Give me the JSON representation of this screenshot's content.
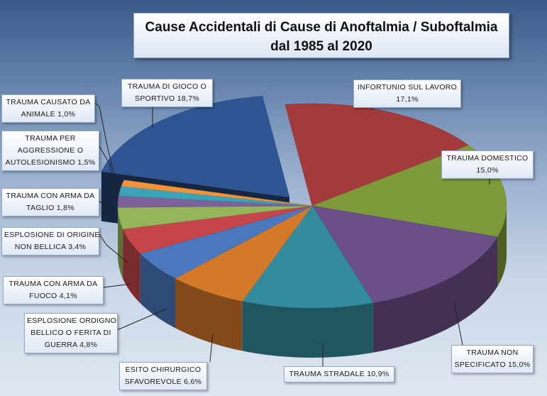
{
  "title": {
    "line1": "Cause Accidentali di Cause di Anoftalmia / Suboftalmia",
    "line2": "dal 1985 al 2020"
  },
  "chart_data": {
    "type": "pie",
    "style": "3d-exploded",
    "title": "Cause Accidentali di Cause di Anoftalmia / Suboftalmia dal 1985 al 2020",
    "slices": [
      {
        "label": "INFORTUNIO SUL LAVORO",
        "value": 17.1,
        "text": "17,1%",
        "color": "#a33b3d"
      },
      {
        "label": "TRAUMA DOMESTICO",
        "value": 15.0,
        "text": "15,0%",
        "color": "#7f9a3a"
      },
      {
        "label": "TRAUMA NON SPECIFICATO",
        "value": 15.0,
        "text": "15,0%",
        "color": "#6a4f88"
      },
      {
        "label": "TRAUMA STRADALE",
        "value": 10.9,
        "text": "10,9%",
        "color": "#338b9e"
      },
      {
        "label": "ESITO CHIRURGICO SFAVOREVOLE",
        "value": 6.6,
        "text": "6,6%",
        "color": "#d4782a"
      },
      {
        "label": "ESPLOSIONE ORDIGNO BELLICO O FERITA DI GUERRA",
        "value": 4.8,
        "text": "4,8%",
        "color": "#4a78bf"
      },
      {
        "label": "TRAUMA CON ARMA DA FUOCO",
        "value": 4.1,
        "text": "4,1%",
        "color": "#c4464a"
      },
      {
        "label": "ESPLOSIONE DI ORIGINE NON BELLICA",
        "value": 3.4,
        "text": "3,4%",
        "color": "#94b55a"
      },
      {
        "label": "TRAUMA CON ARMA DA TAGLIO",
        "value": 1.8,
        "text": "1,8%",
        "color": "#7c6299"
      },
      {
        "label": "TRAUMA PER AGGRESSIONE O AUTOLESIONISMO",
        "value": 1.5,
        "text": "1,5%",
        "color": "#3aa3b8"
      },
      {
        "label": "TRAUMA CAUSATO DA ANIMALE",
        "value": 1.0,
        "text": "1,0%",
        "color": "#f0933a"
      },
      {
        "label": "TRAUMA DI GIOCO O SPORTIVO",
        "value": 18.7,
        "text": "18,7%",
        "color": "#2f5693"
      }
    ]
  },
  "labels": [
    {
      "lines": [
        "INFORTUNIO SUL LAVORO",
        "17,1%"
      ]
    },
    {
      "lines": [
        "TRAUMA  DOMESTICO",
        "15,0%"
      ]
    },
    {
      "lines": [
        "TRAUMA  NON",
        "SPECIFICATO  15,0%"
      ]
    },
    {
      "lines": [
        "TRAUMA  STRADALE  10,9%"
      ]
    },
    {
      "lines": [
        "ESITO CHIRURGICO",
        "SFAVOREVOLE   6,6%"
      ]
    },
    {
      "lines": [
        "ESPLOSIONE ORDIGNO",
        "BELLICO  O FERITA DI",
        "GUERRA  4,8%"
      ]
    },
    {
      "lines": [
        "TRAUMA  CON ARMA DA",
        "FUOCO  4,1%"
      ]
    },
    {
      "lines": [
        "ESPLOSIONE DI ORIGINE",
        "NON BELLICA  3,4%"
      ]
    },
    {
      "lines": [
        "TRAUMA  CON ARMA DA",
        "TAGLIO  1,8%"
      ]
    },
    {
      "lines": [
        "TRAUMA  PER",
        "AGGRESSIONE  O",
        "AUTOLESIONISMO  1,5%"
      ]
    },
    {
      "lines": [
        "TRAUMA  CAUSATO  DA",
        "ANIMALE  1,0%"
      ]
    },
    {
      "lines": [
        "TRAUMA  DI GIOCO O",
        "SPORTIVO 18,7%"
      ]
    }
  ]
}
